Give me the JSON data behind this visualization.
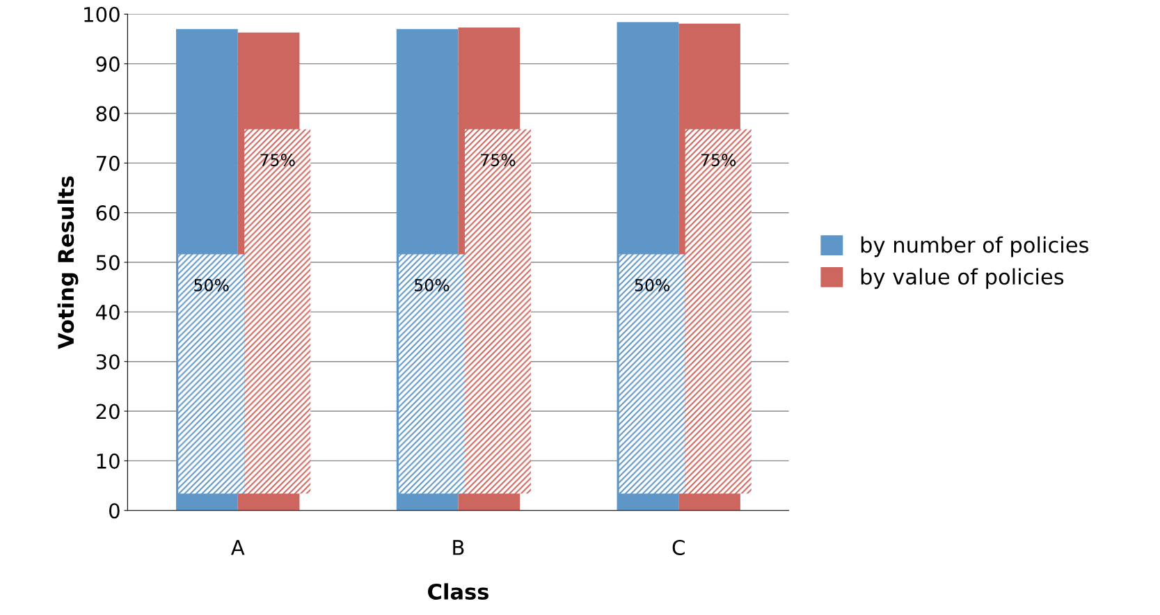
{
  "chart_data": {
    "type": "bar",
    "xlabel": "Class",
    "ylabel": "Voting Results",
    "categories": [
      "A",
      "B",
      "C"
    ],
    "series": [
      {
        "name": "by number of policies",
        "color": "#5f96c8",
        "values": [
          97.0,
          97.0,
          98.4
        ]
      },
      {
        "name": "by value of policies",
        "color": "#cd665e",
        "values": [
          96.3,
          97.3,
          98.1
        ]
      },
      {
        "color": "#5f96c8",
        "base": [
          3.4,
          3.4,
          3.4
        ],
        "values": [
          48.2,
          48.2,
          48.2
        ]
      },
      {
        "color": "#cd665e",
        "base": [
          3.4,
          3.4,
          3.4
        ],
        "values": [
          73.4,
          73.4,
          73.4
        ]
      }
    ],
    "annotations": [
      "50%",
      "75%",
      "50%",
      "75%",
      "50%",
      "75%"
    ],
    "ylim": [
      0,
      100
    ],
    "yticks": [
      0,
      10,
      20,
      30,
      40,
      50,
      60,
      70,
      80,
      90,
      100
    ],
    "grid": "y",
    "legend": "right"
  }
}
